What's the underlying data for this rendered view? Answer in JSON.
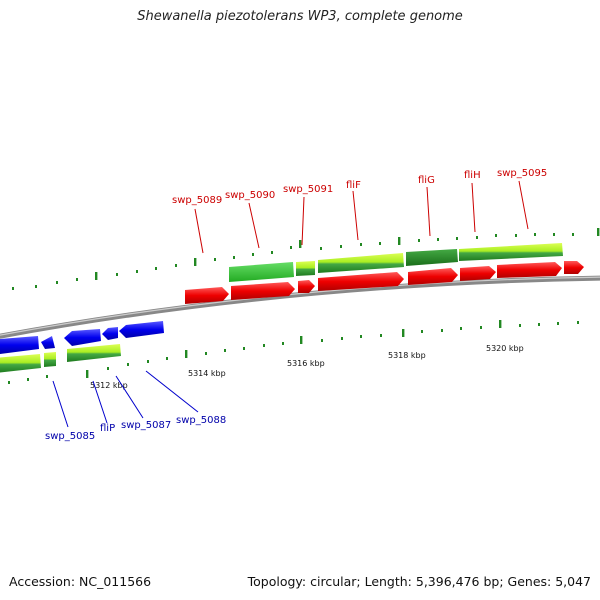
{
  "title": "Shewanella piezotolerans WP3, complete genome",
  "footer": {
    "accession": "Accession: NC_011566",
    "summary": "Topology: circular; Length: 5,396,476 bp; Genes: 5,047"
  },
  "colors": {
    "forward_label": "#cc0000",
    "reverse_label": "#0000aa",
    "leader_forward": "#cc0000",
    "leader_reverse": "#0000cc",
    "cds": "#ff0000",
    "cds_reverse": "#0000ff",
    "ruler_tick": "#228822",
    "backbone": "#888888"
  },
  "ticks": [
    {
      "label": "5312 kbp"
    },
    {
      "label": "5314 kbp"
    },
    {
      "label": "5316 kbp"
    },
    {
      "label": "5318 kbp"
    },
    {
      "label": "5320 kbp"
    }
  ],
  "genes_forward": [
    {
      "label": "swp_5089"
    },
    {
      "label": "swp_5090"
    },
    {
      "label": "swp_5091"
    },
    {
      "label": "fliF"
    },
    {
      "label": "fliG"
    },
    {
      "label": "fliH"
    },
    {
      "label": "swp_5095"
    }
  ],
  "genes_reverse": [
    {
      "label": "swp_5085"
    },
    {
      "label": "fliP"
    },
    {
      "label": "swp_5087"
    },
    {
      "label": "swp_5088"
    }
  ]
}
